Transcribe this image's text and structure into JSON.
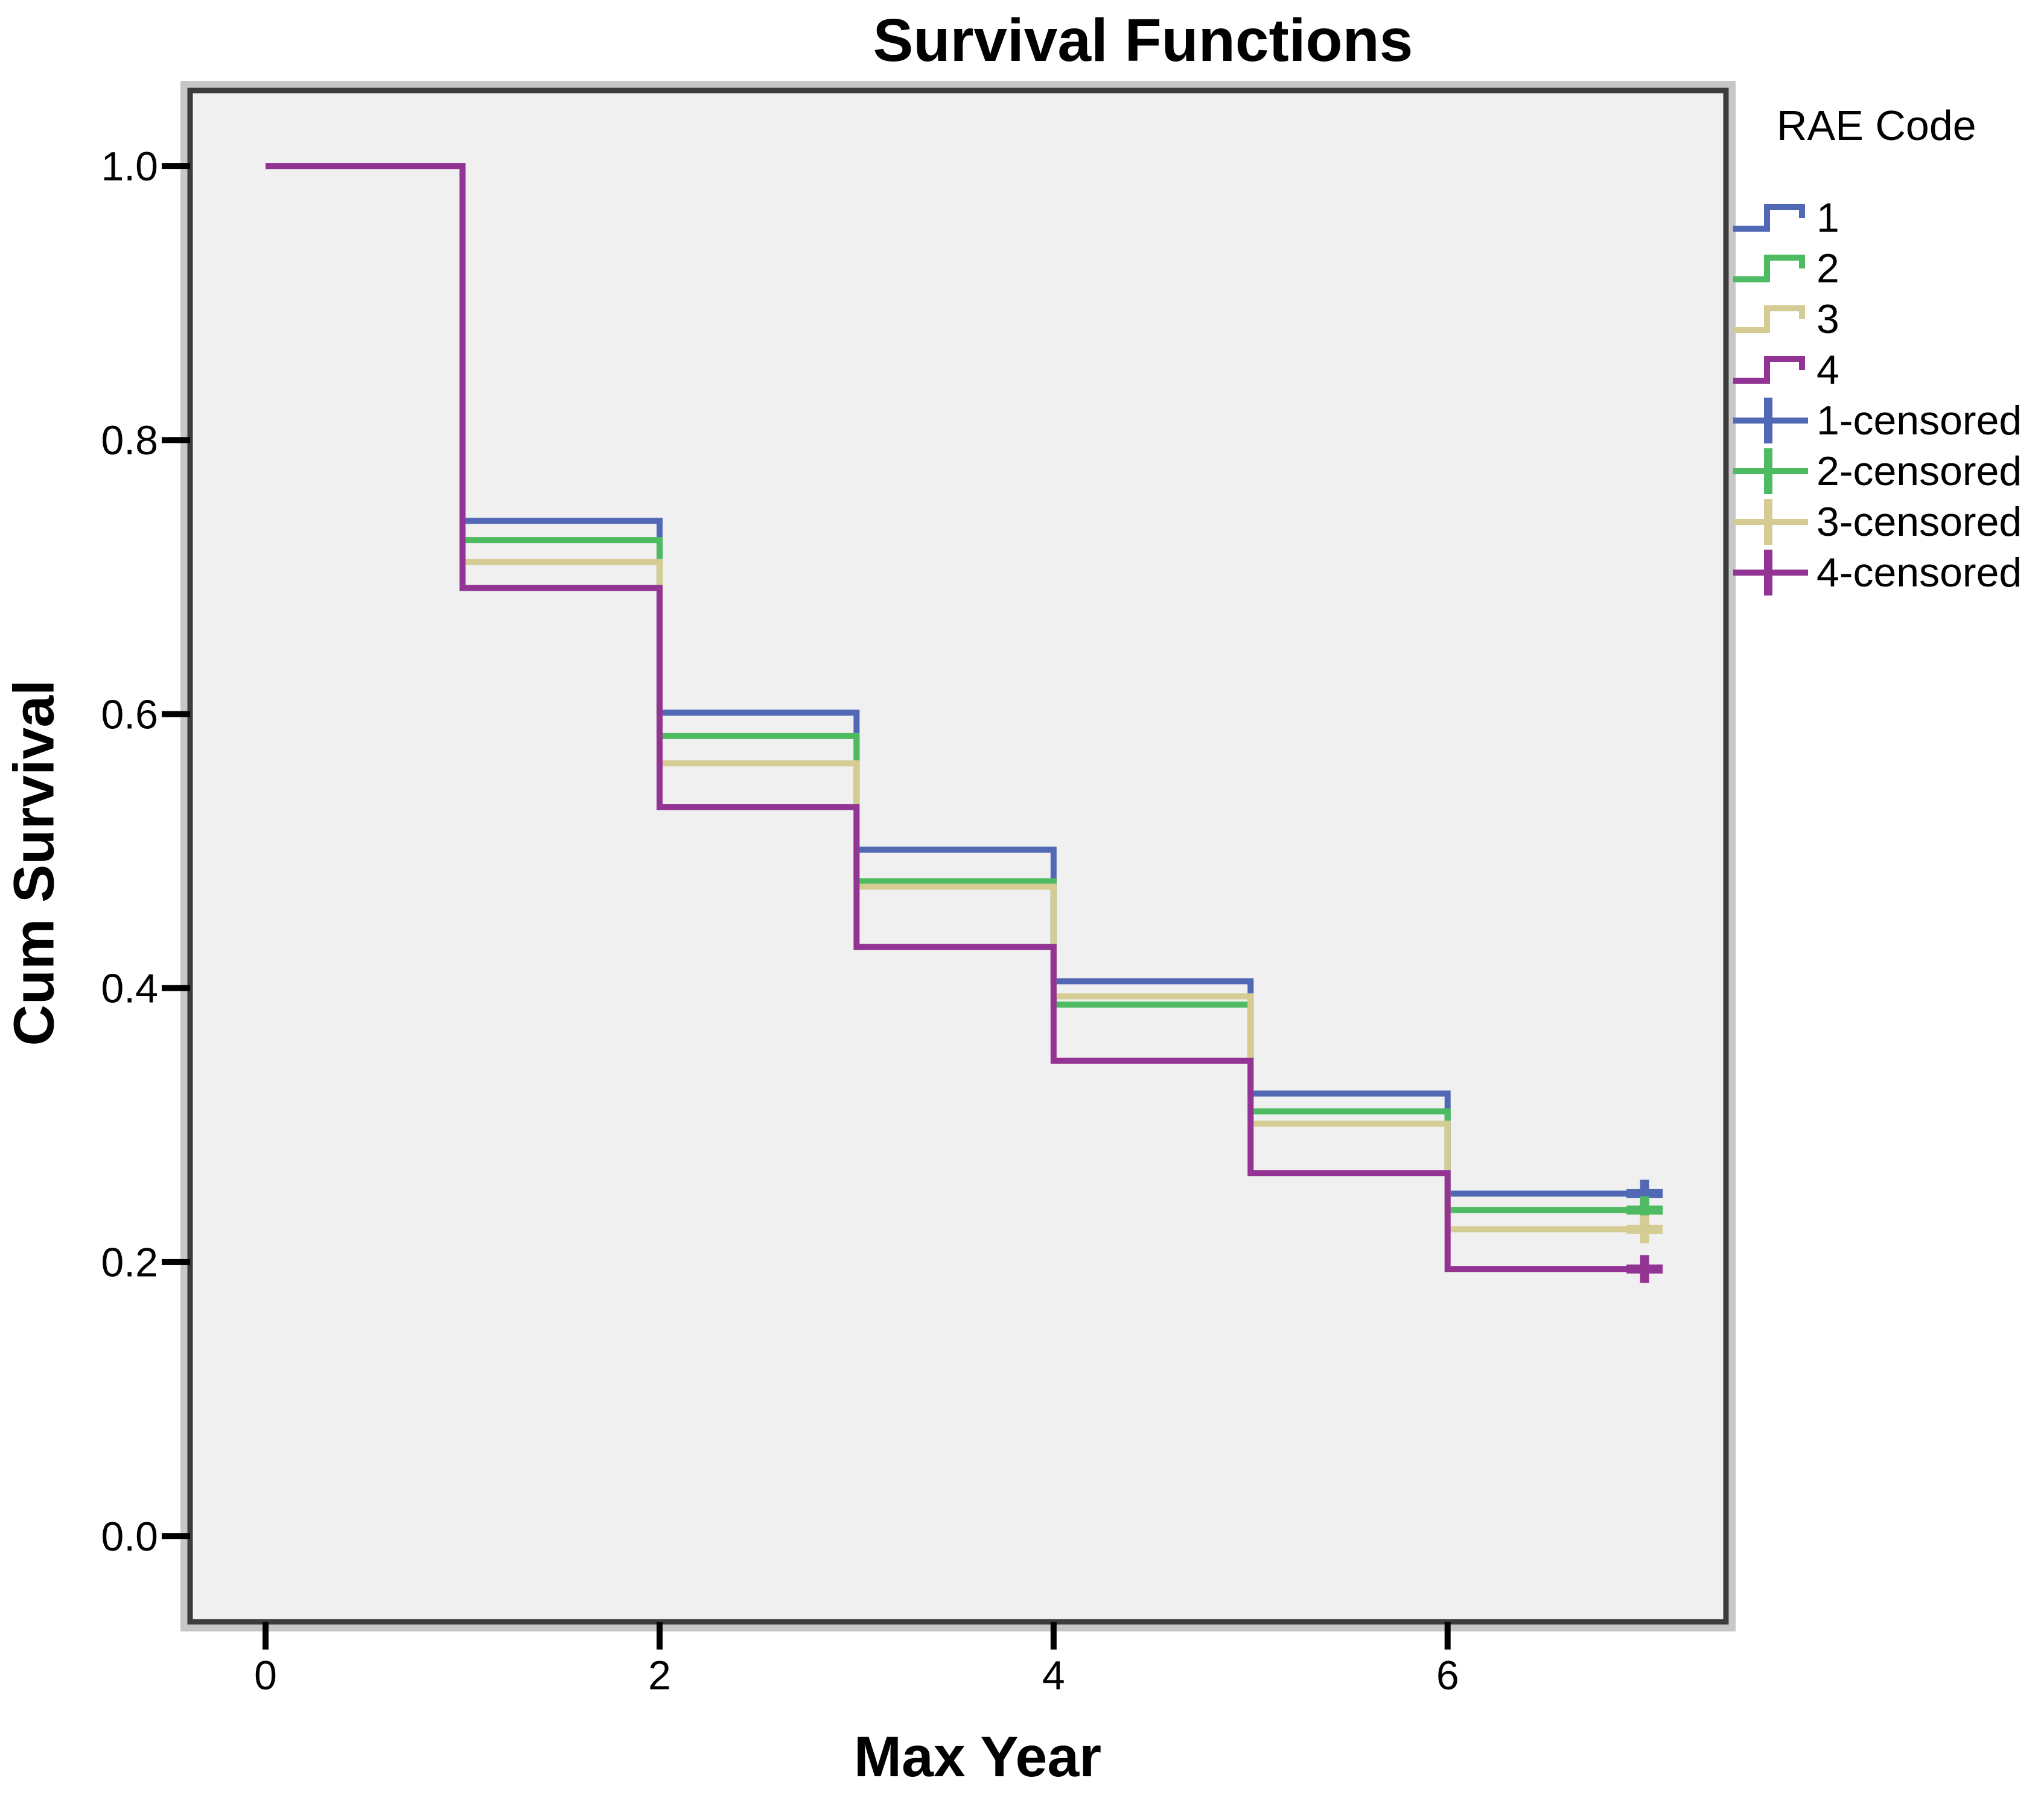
{
  "figure": {
    "title": "Survival Functions",
    "background_color": "#ffffff"
  },
  "axes": {
    "x": {
      "title": "Max Year",
      "tick_labels": [
        "0",
        "2",
        "4",
        "6"
      ],
      "tick_values": [
        0,
        2,
        4,
        6
      ]
    },
    "y": {
      "title": "Cum Survival",
      "tick_labels": [
        "1.0",
        "0.8",
        "0.6",
        "0.4",
        "0.2",
        "0.0"
      ],
      "tick_values": [
        1.0,
        0.8,
        0.6,
        0.4,
        0.2,
        0.0
      ]
    }
  },
  "legend": {
    "title": "RAE Code",
    "items": [
      {
        "label": "1",
        "type": "step",
        "color": "#5168b4"
      },
      {
        "label": "2",
        "type": "step",
        "color": "#4eba62"
      },
      {
        "label": "3",
        "type": "step",
        "color": "#d5cc93"
      },
      {
        "label": "4",
        "type": "step",
        "color": "#933393"
      },
      {
        "label": "1-censored",
        "type": "censored",
        "color": "#5168b4"
      },
      {
        "label": "2-censored",
        "type": "censored",
        "color": "#4eba62"
      },
      {
        "label": "3-censored",
        "type": "censored",
        "color": "#d5cc93"
      },
      {
        "label": "4-censored",
        "type": "censored",
        "color": "#933393"
      }
    ]
  },
  "chart_data": {
    "type": "line",
    "subtype": "kaplan_meier_step",
    "title": "Survival Functions",
    "xlabel": "Max Year",
    "ylabel": "Cum Survival",
    "xlim": [
      -0.383,
      7.413
    ],
    "ylim": [
      -0.0625,
      1.0551
    ],
    "x_ticks": [
      0,
      2,
      4,
      6
    ],
    "y_ticks": [
      1.0,
      0.8,
      0.6,
      0.4,
      0.2,
      0.0
    ],
    "grid": false,
    "legend_position": "right",
    "legend_title": "RAE Code",
    "step_start_x": [
      0,
      1,
      2,
      3,
      4,
      5,
      6
    ],
    "step_end_x": 7,
    "series": [
      {
        "name": "1",
        "rae_code": 1,
        "color": "#5168b4",
        "levels": [
          1.0,
          0.741,
          0.601,
          0.501,
          0.405,
          0.323,
          0.25
        ],
        "censored": {
          "x": 7,
          "y": 0.25,
          "label": "1-censored"
        }
      },
      {
        "name": "2",
        "rae_code": 2,
        "color": "#4eba62",
        "levels": [
          1.0,
          0.727,
          0.584,
          0.478,
          0.388,
          0.31,
          0.238
        ],
        "censored": {
          "x": 7,
          "y": 0.238,
          "label": "2-censored"
        }
      },
      {
        "name": "3",
        "rae_code": 3,
        "color": "#d5cc93",
        "levels": [
          1.0,
          0.711,
          0.564,
          0.474,
          0.394,
          0.301,
          0.224
        ],
        "censored": {
          "x": 7,
          "y": 0.224,
          "label": "3-censored"
        }
      },
      {
        "name": "4",
        "rae_code": 4,
        "color": "#933393",
        "levels": [
          1.0,
          0.692,
          0.532,
          0.43,
          0.347,
          0.265,
          0.195
        ],
        "censored": {
          "x": 7,
          "y": 0.195,
          "label": "4-censored"
        }
      }
    ],
    "colors": {
      "plot_background": "#f0f0f0",
      "frame": "#3c3c3c",
      "outer_band": "#c7c7c7",
      "text": "#000000"
    }
  }
}
